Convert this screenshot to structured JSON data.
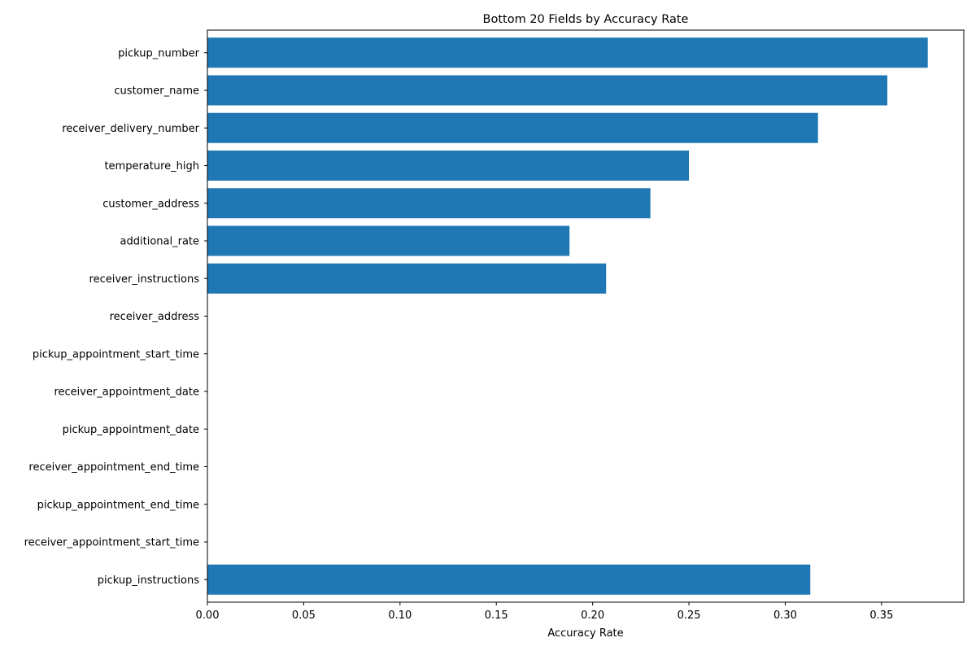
{
  "chart_data": {
    "type": "bar",
    "orientation": "horizontal",
    "title": "Bottom 20 Fields by Accuracy Rate",
    "xlabel": "Accuracy Rate",
    "ylabel": "",
    "xlim": [
      0,
      0.3927
    ],
    "xticks": [
      0.0,
      0.05,
      0.1,
      0.15,
      0.2,
      0.25,
      0.3,
      0.35
    ],
    "xtick_labels": [
      "0.00",
      "0.05",
      "0.10",
      "0.15",
      "0.20",
      "0.25",
      "0.30",
      "0.35"
    ],
    "grid": false,
    "legend": "none",
    "bar_color": "#1f77b4",
    "categories": [
      "pickup_number",
      "customer_name",
      "receiver_delivery_number",
      "temperature_high",
      "customer_address",
      "additional_rate",
      "receiver_instructions",
      "receiver_address",
      "pickup_appointment_start_time",
      "receiver_appointment_date",
      "pickup_appointment_date",
      "receiver_appointment_end_time",
      "pickup_appointment_end_time",
      "receiver_appointment_start_time",
      "pickup_instructions"
    ],
    "values": [
      0.374,
      0.353,
      0.317,
      0.25,
      0.23,
      0.188,
      0.207,
      0,
      0,
      0,
      0,
      0,
      0,
      0,
      0.313
    ]
  }
}
